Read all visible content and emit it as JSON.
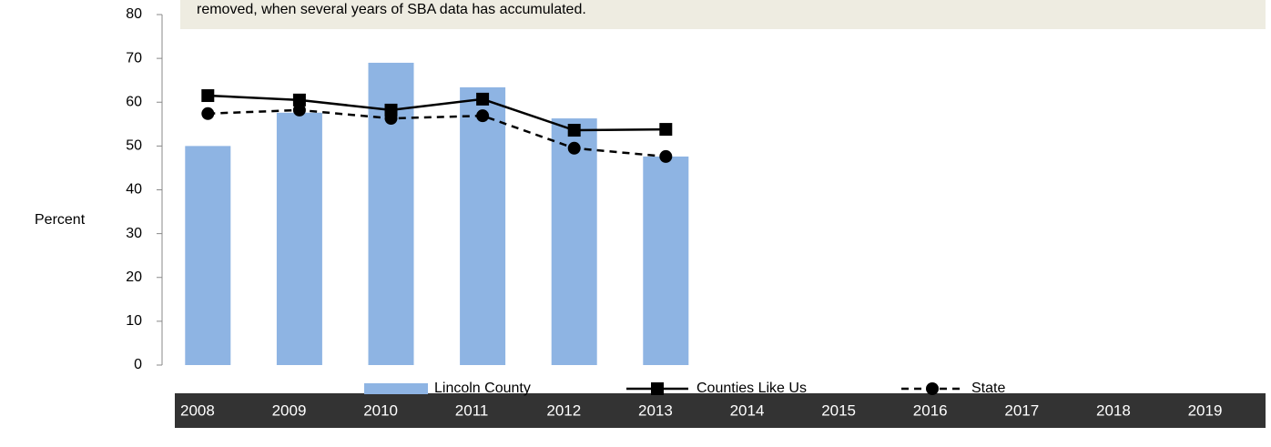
{
  "chart_data": {
    "type": "bar",
    "annotation": "removed, when several years of  SBA data has accumulated.",
    "ylabel": "Percent",
    "categories": [
      "2008",
      "2009",
      "2010",
      "2011",
      "2012",
      "2013",
      "2014",
      "2015",
      "2016",
      "2017",
      "2018",
      "2019"
    ],
    "series": [
      {
        "name": "Lincoln County",
        "type": "bar",
        "color": "#8eb4e3",
        "values": [
          50,
          57.6,
          69,
          63.4,
          56.3,
          47.6,
          null,
          null,
          null,
          null,
          null,
          null
        ]
      },
      {
        "name": "Counties Like Us",
        "type": "line",
        "color": "#000000",
        "marker": "square",
        "linestyle": "solid",
        "values": [
          61.5,
          60.5,
          58.2,
          60.7,
          53.6,
          53.8,
          null,
          null,
          null,
          null,
          null,
          null
        ]
      },
      {
        "name": "State",
        "type": "line",
        "color": "#000000",
        "marker": "circle",
        "linestyle": "dashed",
        "values": [
          57.4,
          58.2,
          56.3,
          56.9,
          49.5,
          47.6,
          null,
          null,
          null,
          null,
          null,
          null
        ]
      }
    ],
    "ylim": [
      0,
      80
    ],
    "yticks": [
      0,
      10,
      20,
      30,
      40,
      50,
      60,
      70,
      80
    ],
    "grid": false,
    "legend": "bottom"
  }
}
